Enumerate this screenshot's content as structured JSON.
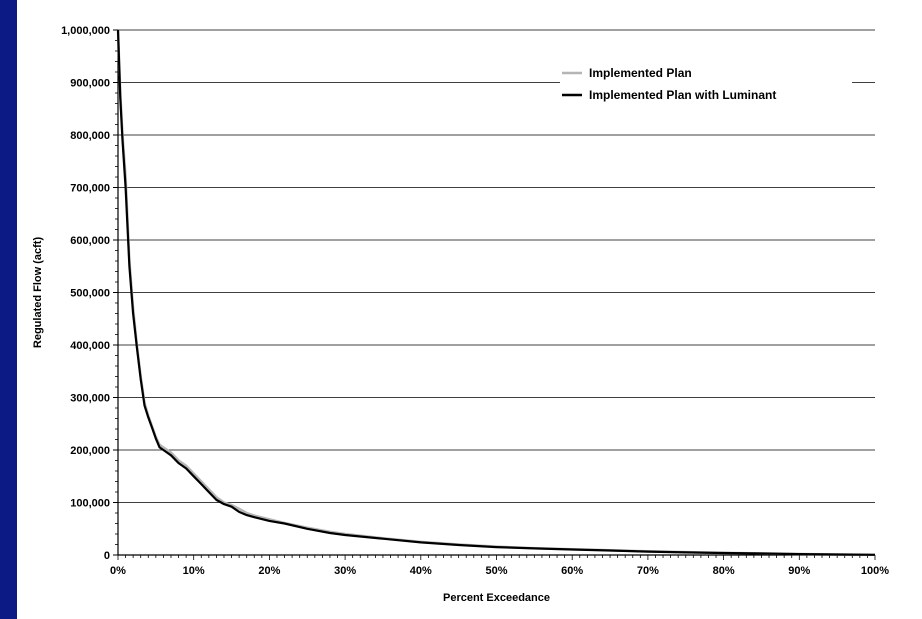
{
  "chart_data": {
    "type": "line",
    "xlabel": "Percent Exceedance",
    "ylabel": "Regulated Flow (acft)",
    "xlim": [
      0,
      100
    ],
    "ylim": [
      0,
      1000000
    ],
    "x_ticks": [
      0,
      10,
      20,
      30,
      40,
      50,
      60,
      70,
      80,
      90,
      100
    ],
    "x_tick_labels": [
      "0%",
      "10%",
      "20%",
      "30%",
      "40%",
      "50%",
      "60%",
      "70%",
      "80%",
      "90%",
      "100%"
    ],
    "y_ticks": [
      0,
      100000,
      200000,
      300000,
      400000,
      500000,
      600000,
      700000,
      800000,
      900000,
      1000000
    ],
    "y_tick_labels": [
      "0",
      "100,000",
      "200,000",
      "300,000",
      "400,000",
      "500,000",
      "600,000",
      "700,000",
      "800,000",
      "900,000",
      "1,000,000"
    ],
    "grid": "horizontal",
    "legend_position": "top-right",
    "series": [
      {
        "name": "Implemented Plan",
        "color": "#b5b5b5",
        "x": [
          0,
          0.3,
          0.6,
          1,
          1.5,
          2,
          2.5,
          3,
          3.5,
          4,
          4.5,
          5,
          5.5,
          6,
          7,
          8,
          9,
          10,
          11,
          12,
          13,
          14,
          15,
          16,
          17,
          18,
          20,
          22,
          25,
          28,
          30,
          35,
          40,
          45,
          50,
          55,
          60,
          65,
          70,
          75,
          80,
          85,
          90,
          95,
          100
        ],
        "y": [
          1000000,
          880000,
          800000,
          720000,
          560000,
          470000,
          400000,
          340000,
          290000,
          265000,
          245000,
          225000,
          210000,
          205000,
          195000,
          180000,
          170000,
          155000,
          140000,
          125000,
          110000,
          100000,
          95000,
          88000,
          80000,
          75000,
          68000,
          61000,
          52000,
          44000,
          40000,
          32000,
          25000,
          20000,
          16000,
          13000,
          11000,
          9000,
          7000,
          5500,
          4000,
          3000,
          2000,
          1000,
          500
        ]
      },
      {
        "name": "Implemented Plan with Luminant",
        "color": "#000000",
        "x": [
          0,
          0.3,
          0.6,
          1,
          1.5,
          2,
          2.5,
          3,
          3.5,
          4,
          4.5,
          5,
          5.5,
          6,
          7,
          8,
          9,
          10,
          11,
          12,
          13,
          14,
          15,
          16,
          17,
          18,
          20,
          22,
          25,
          28,
          30,
          35,
          40,
          45,
          50,
          55,
          60,
          65,
          70,
          75,
          80,
          85,
          90,
          95,
          100
        ],
        "y": [
          1000000,
          870000,
          790000,
          700000,
          550000,
          460000,
          395000,
          335000,
          285000,
          262000,
          242000,
          222000,
          205000,
          200000,
          190000,
          175000,
          165000,
          150000,
          135000,
          120000,
          105000,
          97000,
          92000,
          82000,
          76000,
          72000,
          65000,
          60000,
          50000,
          42000,
          38000,
          31000,
          24000,
          19000,
          15000,
          12500,
          10500,
          8500,
          6500,
          5000,
          3800,
          2800,
          1800,
          900,
          400
        ]
      }
    ]
  }
}
